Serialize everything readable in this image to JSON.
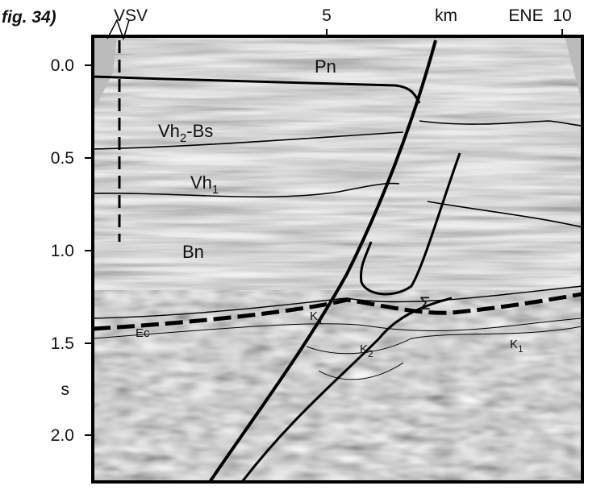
{
  "figure": {
    "label": "fig. 34)",
    "top_labels": [
      "VSV",
      "5",
      "km",
      "ENE",
      "10"
    ],
    "y_labels": [
      "0.0",
      "0.5",
      "1.0",
      "1.5",
      "s",
      "2.0"
    ],
    "horizons": [
      {
        "text": "Pn"
      },
      {
        "text": "Vh",
        "sub": "2",
        "suffix": "-Bs"
      },
      {
        "text": "Vh",
        "sub": "1"
      },
      {
        "text": "Bn"
      },
      {
        "text": "Σ"
      },
      {
        "text": "K",
        "sub": "1"
      },
      {
        "text": "K",
        "sub": "2"
      },
      {
        "text": "K",
        "sub": "1"
      },
      {
        "text": "Ec"
      }
    ]
  }
}
